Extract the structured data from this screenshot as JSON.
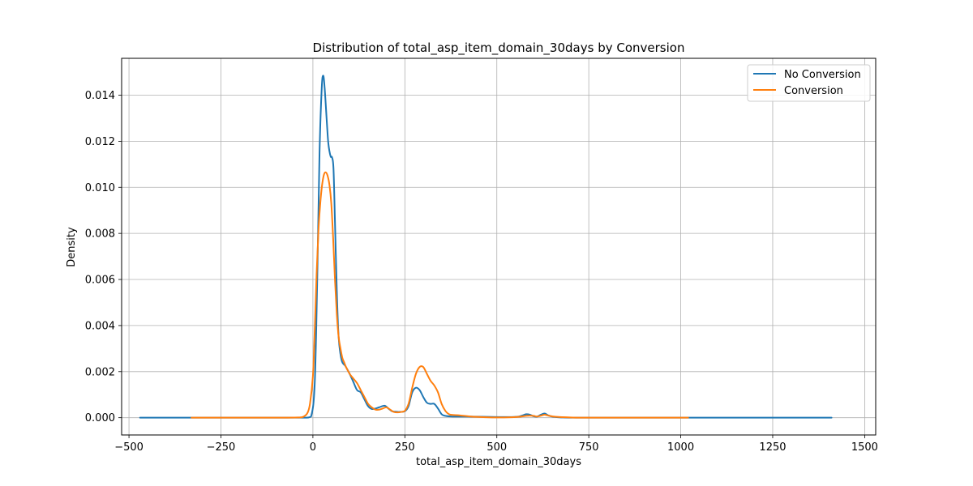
{
  "chart_data": {
    "type": "line",
    "title": "Distribution of total_asp_item_domain_30days by Conversion",
    "xlabel": "total_asp_item_domain_30days",
    "ylabel": "Density",
    "xlim": [
      -520,
      1530
    ],
    "ylim": [
      -0.00075,
      0.0156
    ],
    "grid": true,
    "legend_position": "upper right",
    "x_ticks": [
      -500,
      -250,
      0,
      250,
      500,
      750,
      1000,
      1250,
      1500
    ],
    "x_tick_labels": [
      "−500",
      "−250",
      "0",
      "250",
      "500",
      "750",
      "1000",
      "1250",
      "1500"
    ],
    "y_ticks": [
      0.0,
      0.002,
      0.004,
      0.006,
      0.008,
      0.01,
      0.012,
      0.014
    ],
    "y_tick_labels": [
      "0.000",
      "0.002",
      "0.004",
      "0.006",
      "0.008",
      "0.010",
      "0.012",
      "0.014"
    ],
    "series": [
      {
        "name": "No Conversion",
        "color": "#1f77b4",
        "x": [
          -470,
          -200,
          -50,
          -20,
          -5,
          5,
          12,
          18,
          24,
          28,
          32,
          38,
          42,
          48,
          52,
          56,
          60,
          65,
          70,
          78,
          88,
          100,
          110,
          120,
          130,
          140,
          150,
          160,
          170,
          180,
          195,
          205,
          215,
          225,
          235,
          250,
          260,
          270,
          280,
          290,
          300,
          310,
          320,
          330,
          340,
          350,
          360,
          380,
          420,
          500,
          540,
          560,
          570,
          580,
          590,
          600,
          610,
          620,
          630,
          640,
          650,
          660,
          680,
          750,
          1000,
          1250,
          1410
        ],
        "y": [
          0,
          0,
          0,
          0,
          5e-05,
          0.0015,
          0.0062,
          0.0115,
          0.0143,
          0.01485,
          0.0143,
          0.0128,
          0.0119,
          0.01135,
          0.0113,
          0.0108,
          0.0085,
          0.0055,
          0.0035,
          0.0025,
          0.00225,
          0.0019,
          0.00155,
          0.0012,
          0.0011,
          0.0008,
          0.0005,
          0.00038,
          0.0004,
          0.00045,
          0.00052,
          0.0004,
          0.00028,
          0.00026,
          0.00025,
          0.00028,
          0.0005,
          0.0011,
          0.0013,
          0.0012,
          0.0009,
          0.00065,
          0.0006,
          0.0006,
          0.0004,
          0.00015,
          8e-05,
          5e-05,
          5e-05,
          3e-05,
          3e-05,
          5e-05,
          0.0001,
          0.00015,
          0.00013,
          6e-05,
          5e-05,
          0.00013,
          0.00018,
          0.0001,
          5e-05,
          3e-05,
          1e-05,
          0,
          0,
          0,
          0
        ]
      },
      {
        "name": "Conversion",
        "color": "#ff7f0e",
        "x": [
          -330,
          -100,
          -40,
          -25,
          -15,
          -8,
          0,
          5,
          10,
          15,
          20,
          25,
          30,
          35,
          40,
          45,
          50,
          55,
          60,
          65,
          70,
          75,
          80,
          85,
          90,
          100,
          110,
          120,
          130,
          140,
          150,
          160,
          170,
          180,
          190,
          200,
          210,
          220,
          230,
          240,
          250,
          260,
          270,
          280,
          290,
          300,
          310,
          320,
          330,
          340,
          350,
          360,
          370,
          380,
          400,
          430,
          470,
          500,
          540,
          560,
          580,
          590,
          600,
          610,
          620,
          630,
          640,
          660,
          700,
          750,
          1020
        ],
        "y": [
          0,
          0,
          1e-05,
          5e-05,
          0.0002,
          0.0006,
          0.0018,
          0.0038,
          0.0062,
          0.0081,
          0.0093,
          0.0101,
          0.01055,
          0.01065,
          0.0105,
          0.0101,
          0.0093,
          0.0078,
          0.006,
          0.0045,
          0.0035,
          0.003,
          0.0026,
          0.0024,
          0.0022,
          0.0019,
          0.0017,
          0.0015,
          0.0012,
          0.0009,
          0.0006,
          0.00045,
          0.00035,
          0.00035,
          0.0004,
          0.00045,
          0.00035,
          0.00025,
          0.00023,
          0.00025,
          0.0003,
          0.0006,
          0.0013,
          0.0019,
          0.0022,
          0.0022,
          0.0019,
          0.0016,
          0.0014,
          0.0011,
          0.0006,
          0.0003,
          0.00015,
          0.00012,
          0.0001,
          5e-05,
          2e-05,
          1e-05,
          2e-05,
          4e-05,
          8e-05,
          9e-05,
          8e-05,
          5e-05,
          9e-05,
          0.00013,
          9e-05,
          4e-05,
          1e-05,
          0,
          0
        ]
      }
    ]
  }
}
